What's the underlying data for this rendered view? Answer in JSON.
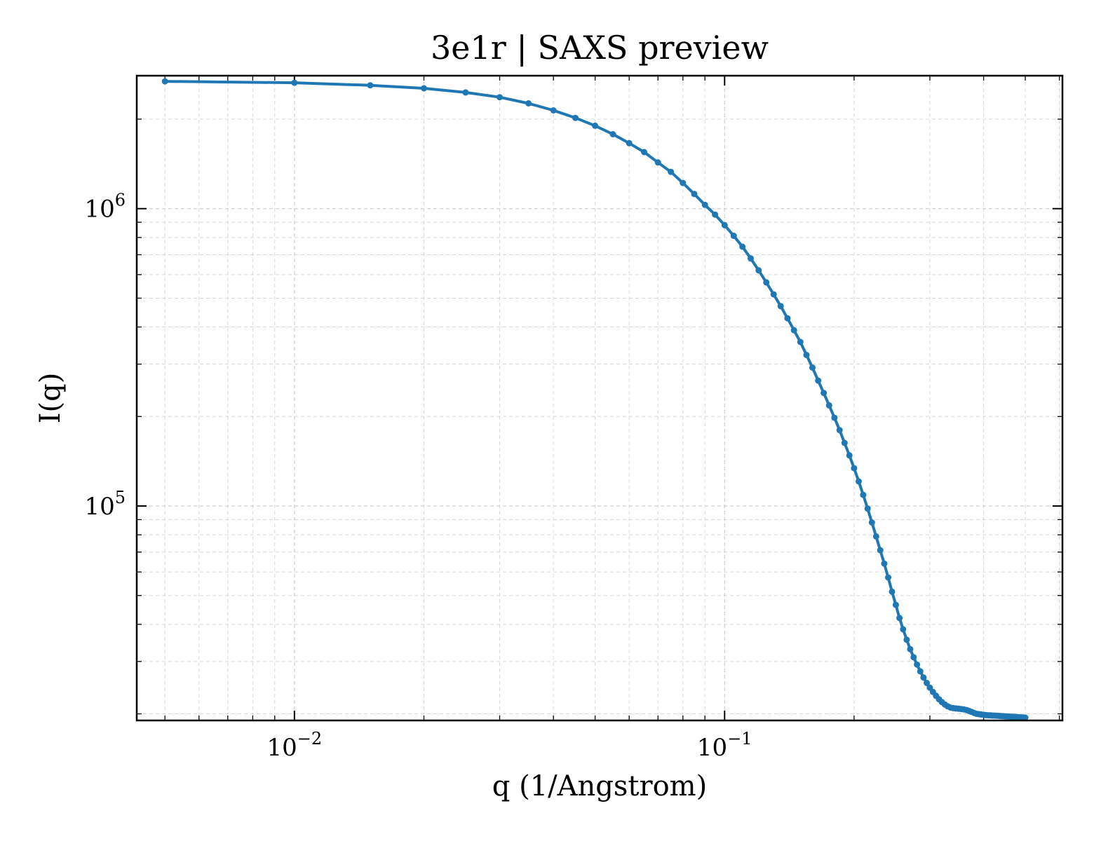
{
  "chart_data": {
    "type": "line",
    "title": "3e1r | SAXS preview",
    "xlabel": "q (1/Angstrom)",
    "ylabel": "I(q)",
    "xscale": "log",
    "yscale": "log",
    "xlim": [
      0.0043,
      0.61
    ],
    "ylim": [
      19000,
      2800000
    ],
    "grid": true,
    "legend": "none",
    "color": "#1f77b4",
    "x_ticks": [
      {
        "value": 0.01,
        "base": "10",
        "exp": "−2"
      },
      {
        "value": 0.1,
        "base": "10",
        "exp": "−1"
      }
    ],
    "y_ticks": [
      {
        "value": 100000,
        "base": "10",
        "exp": "5"
      },
      {
        "value": 1000000,
        "base": "10",
        "exp": "6"
      }
    ],
    "series": [
      {
        "x": [
          0.005,
          0.01,
          0.015,
          0.02,
          0.025,
          0.03,
          0.035,
          0.04,
          0.045,
          0.05,
          0.055,
          0.06,
          0.065,
          0.07,
          0.075,
          0.08,
          0.085,
          0.09,
          0.095,
          0.1,
          0.105,
          0.11,
          0.115,
          0.12,
          0.125,
          0.13,
          0.135,
          0.14,
          0.145,
          0.15,
          0.155,
          0.16,
          0.165,
          0.17,
          0.175,
          0.18,
          0.185,
          0.19,
          0.195,
          0.2,
          0.205,
          0.21,
          0.215,
          0.22,
          0.225,
          0.23,
          0.235,
          0.24,
          0.245,
          0.25,
          0.255,
          0.26,
          0.265,
          0.27,
          0.275,
          0.28,
          0.285,
          0.29,
          0.295,
          0.3,
          0.305,
          0.31,
          0.315,
          0.32,
          0.325,
          0.33,
          0.335,
          0.34,
          0.345,
          0.35,
          0.355,
          0.36,
          0.365,
          0.37,
          0.375,
          0.38,
          0.385,
          0.39,
          0.395,
          0.4,
          0.405,
          0.41,
          0.415,
          0.42,
          0.425,
          0.43,
          0.435,
          0.44,
          0.445,
          0.45,
          0.455,
          0.46,
          0.465,
          0.47,
          0.475,
          0.48,
          0.485,
          0.49,
          0.495,
          0.5
        ],
        "y": [
          2680000,
          2650000,
          2600000,
          2540000,
          2460000,
          2370000,
          2260000,
          2140000,
          2020000,
          1900000,
          1780000,
          1660000,
          1550000,
          1430000,
          1330000,
          1220000,
          1120000,
          1030000,
          955000,
          880000,
          810000,
          745000,
          680000,
          620000,
          565000,
          515000,
          470000,
          428000,
          390000,
          356000,
          322000,
          292000,
          264000,
          240000,
          218000,
          198000,
          180000,
          163000,
          148000,
          134000,
          121000,
          109000,
          98000,
          88000,
          79000,
          71000,
          64000,
          57500,
          51500,
          46500,
          42000,
          38500,
          35500,
          33000,
          31000,
          29300,
          27800,
          26500,
          25400,
          24500,
          23700,
          23000,
          22400,
          21900,
          21500,
          21200,
          21000,
          20900,
          20850,
          20800,
          20750,
          20700,
          20600,
          20450,
          20300,
          20150,
          20000,
          19950,
          19900,
          19850,
          19800,
          19780,
          19760,
          19740,
          19720,
          19700,
          19680,
          19660,
          19640,
          19620,
          19600,
          19580,
          19560,
          19540,
          19520,
          19500,
          19480,
          19460,
          19440,
          19420
        ]
      }
    ]
  }
}
